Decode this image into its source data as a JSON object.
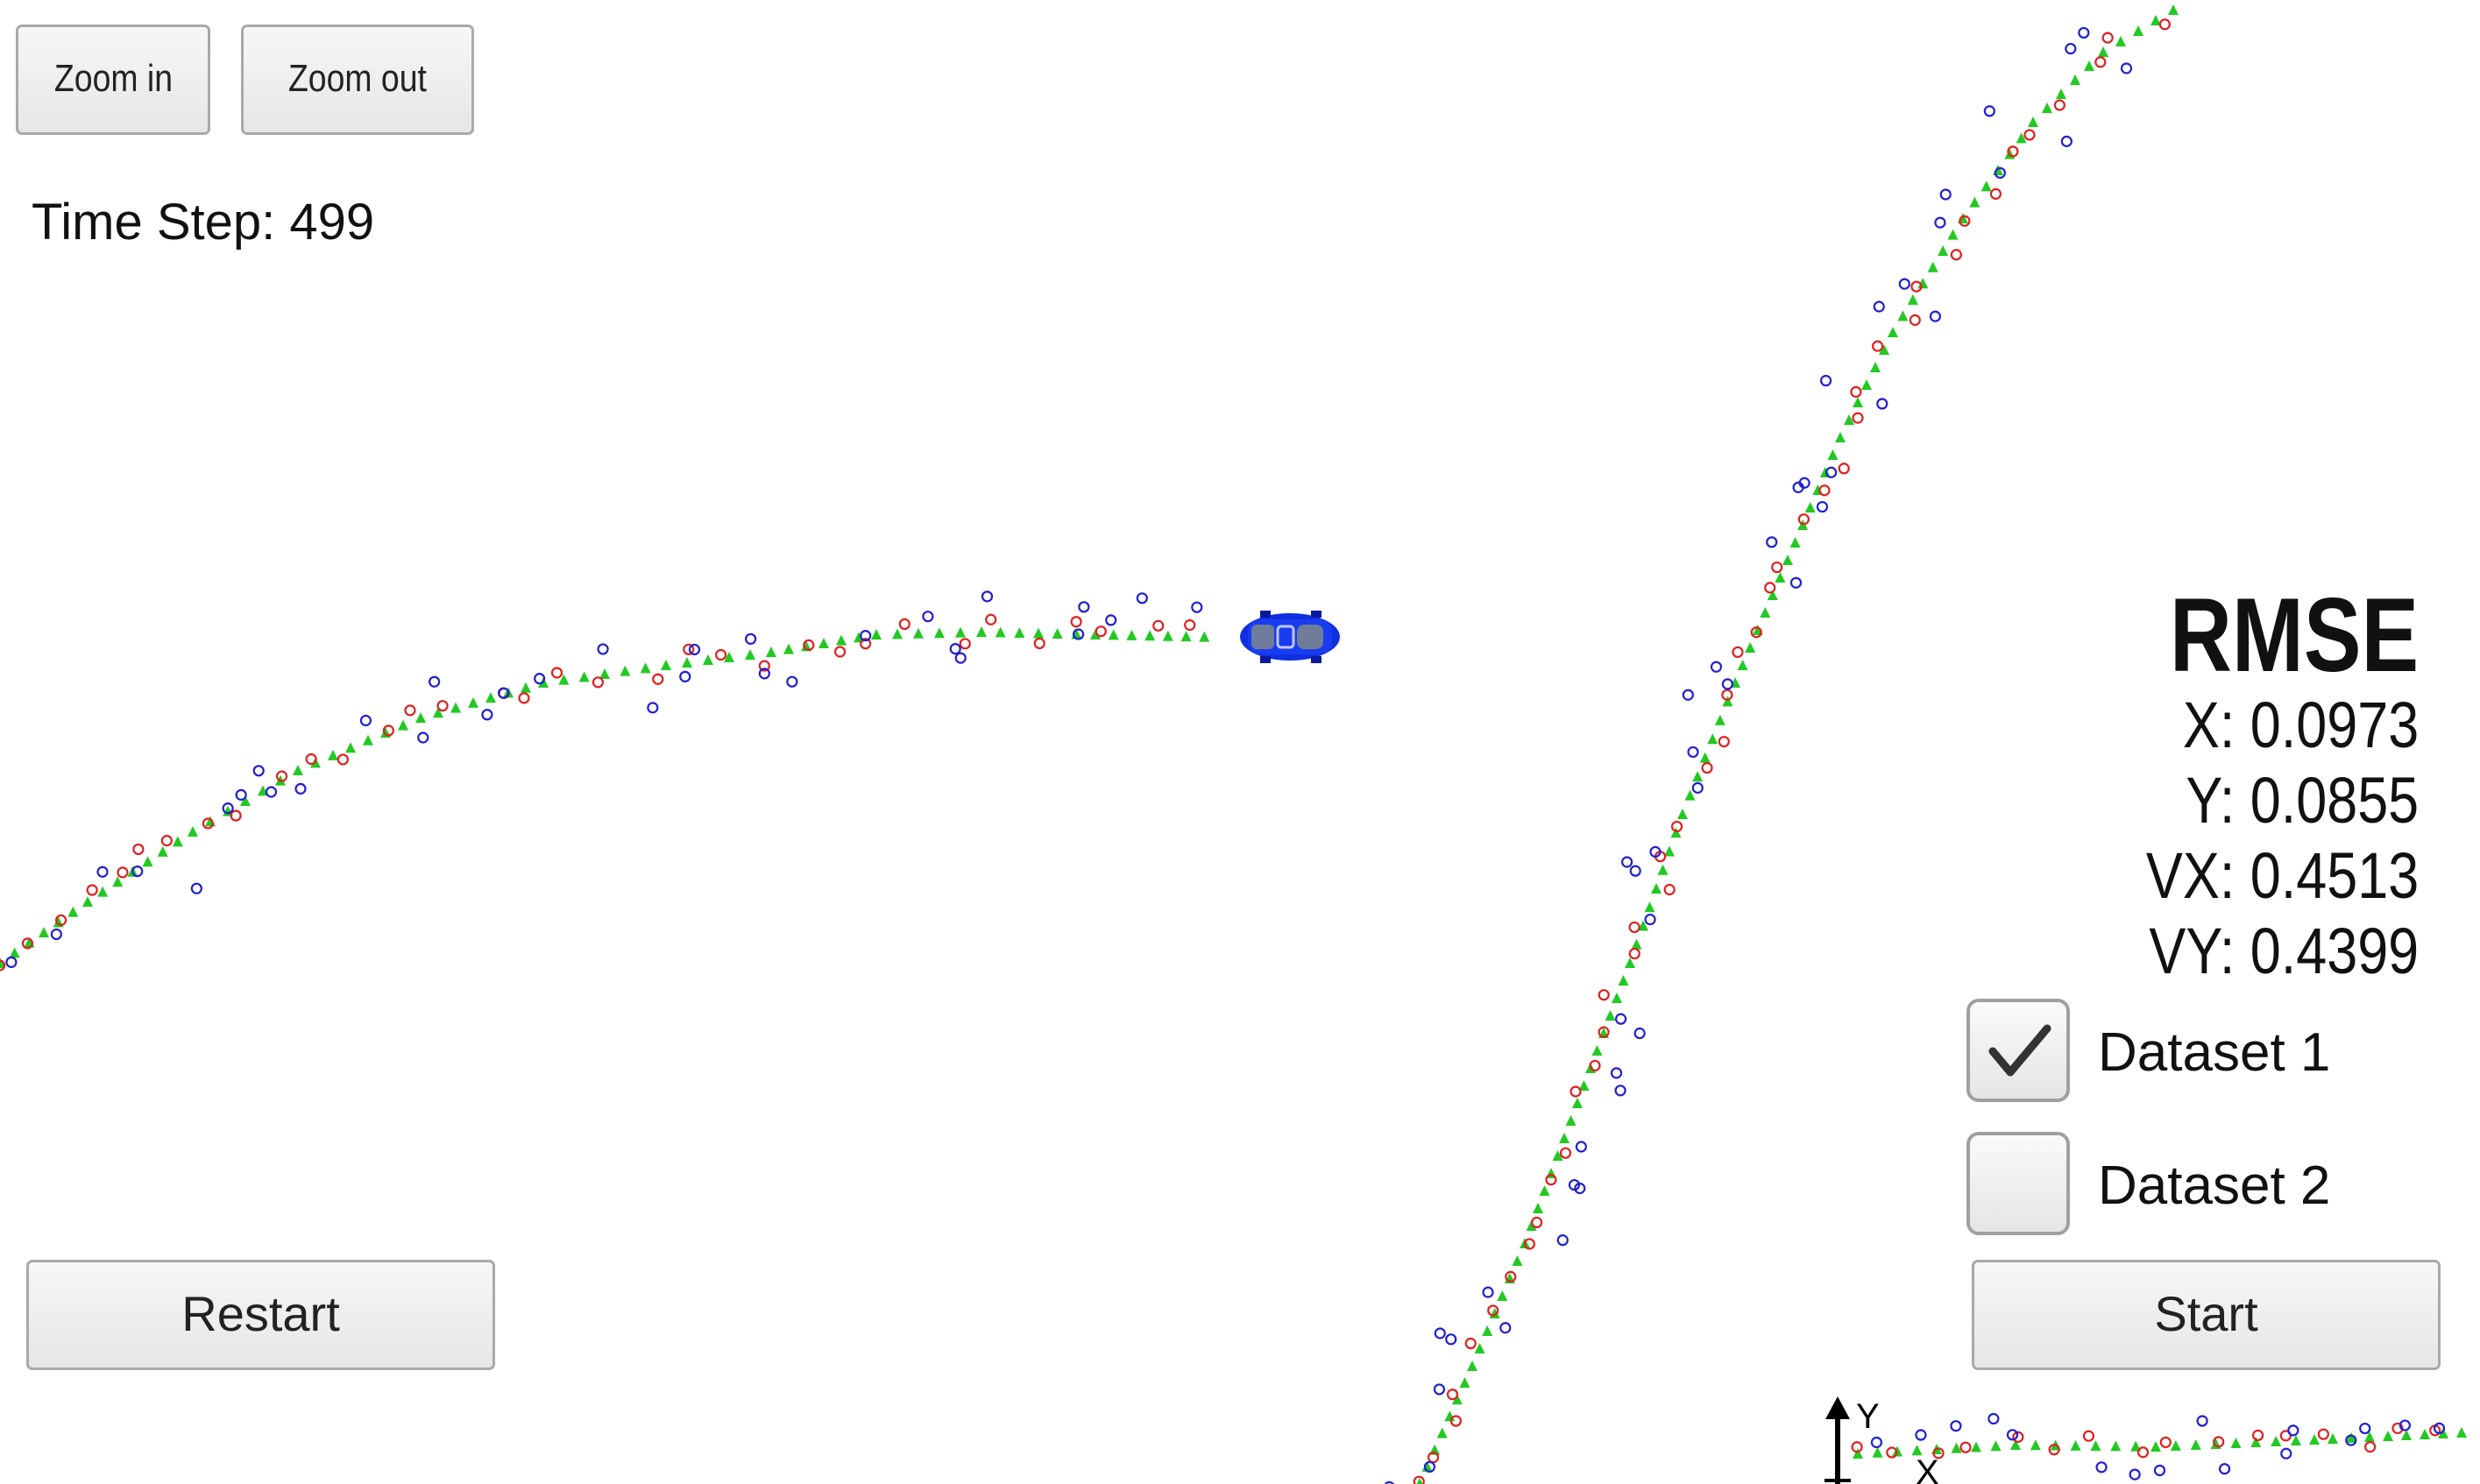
{
  "toolbar": {
    "zoom_in_label": "Zoom in",
    "zoom_out_label": "Zoom out"
  },
  "status": {
    "time_step_label": "Time Step: 499"
  },
  "rmse": {
    "title": "RMSE",
    "x": "X: 0.0973",
    "y": "Y: 0.0855",
    "vx": "VX: 0.4513",
    "vy": "VY: 0.4399"
  },
  "datasets": [
    {
      "label": "Dataset 1",
      "checked": true
    },
    {
      "label": "Dataset 2",
      "checked": false
    }
  ],
  "controls": {
    "restart_label": "Restart",
    "start_label": "Start"
  },
  "axis_indicator": {
    "y_label": "Y",
    "x_label": "X"
  },
  "colors": {
    "estimate": "#22c922",
    "lidar": "#e02020",
    "radar": "#2020d0",
    "car": "#1030e0"
  },
  "icons": {
    "car": "car-icon",
    "check": "checkmark-icon"
  }
}
